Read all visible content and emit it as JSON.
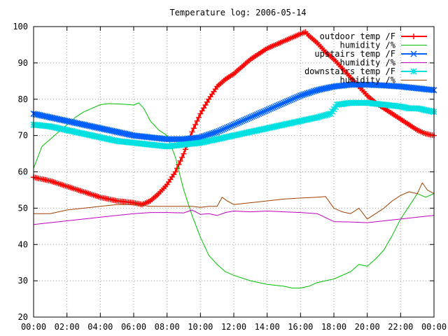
{
  "chart_data": {
    "type": "line",
    "title": "Temperature log: 2006-05-14",
    "xlabel": "",
    "ylabel": "",
    "xlim": [
      0,
      24
    ],
    "ylim": [
      20,
      100
    ],
    "x_ticks": [
      "00:00",
      "02:00",
      "04:00",
      "06:00",
      "08:00",
      "10:00",
      "12:00",
      "14:00",
      "16:00",
      "18:00",
      "20:00",
      "22:00",
      "00:00"
    ],
    "y_ticks": [
      20,
      30,
      40,
      50,
      60,
      70,
      80,
      90,
      100
    ],
    "grid": true,
    "legend_position": "top-right",
    "series": [
      {
        "name": "outdoor temp /F",
        "color": "#ff0000",
        "marker": "plus",
        "x": [
          0,
          1,
          2,
          3,
          4,
          5,
          6,
          6.5,
          7,
          7.5,
          8,
          8.5,
          9,
          9.5,
          10,
          10.5,
          11,
          11.5,
          12,
          12.5,
          13,
          13.5,
          14,
          14.5,
          15,
          15.5,
          16,
          16.3,
          16.5,
          17,
          17.5,
          18,
          18.5,
          19,
          19.5,
          20,
          20.5,
          21,
          21.5,
          22,
          22.5,
          23,
          23.5,
          24
        ],
        "values": [
          58.5,
          57.5,
          56,
          54.5,
          53,
          52,
          51.5,
          51,
          52,
          54,
          56.5,
          60,
          65,
          71,
          76,
          80,
          83.5,
          85.5,
          87,
          89,
          91,
          92.5,
          94,
          95,
          96,
          97,
          98,
          98.5,
          97.5,
          95.5,
          93,
          91,
          88.5,
          86,
          83.5,
          81,
          79,
          77.5,
          76,
          74.5,
          73,
          71.5,
          70.5,
          70
        ]
      },
      {
        "name": "humidity /%",
        "color": "#00c000",
        "marker": "none",
        "x": [
          0,
          0.5,
          1,
          1.5,
          2,
          2.5,
          3,
          3.5,
          4,
          4.5,
          5,
          5.5,
          6,
          6.3,
          6.6,
          7,
          7.5,
          8,
          8.5,
          9,
          9.5,
          10,
          10.5,
          11,
          11.5,
          12,
          13,
          14,
          15,
          15.5,
          16,
          16.5,
          17,
          18,
          19,
          19.5,
          20,
          20.5,
          21,
          21.5,
          22,
          22.5,
          23,
          23.5,
          24
        ],
        "values": [
          61,
          67,
          69,
          71,
          73,
          75,
          76.5,
          77.5,
          78.5,
          78.8,
          78.7,
          78.6,
          78.4,
          79,
          77.5,
          74,
          71.5,
          70,
          64,
          55,
          48,
          42,
          37,
          34.5,
          32.5,
          31.5,
          30,
          29,
          28.5,
          28,
          28,
          28.5,
          29.5,
          30.5,
          32.5,
          34.5,
          34,
          36,
          38.5,
          42.5,
          47,
          50.5,
          54,
          53,
          54
        ]
      },
      {
        "name": "upstairs temp /F",
        "color": "#0060ff",
        "marker": "x",
        "x": [
          0,
          1,
          2,
          3,
          4,
          5,
          6,
          7,
          8,
          9,
          10,
          11,
          12,
          13,
          14,
          15,
          16,
          17,
          18,
          19,
          20,
          21,
          22,
          23,
          24
        ],
        "values": [
          76,
          75,
          74,
          73,
          72,
          71,
          70,
          69.5,
          69,
          69,
          69.5,
          71,
          73,
          75,
          77,
          79,
          81,
          82.5,
          83.5,
          84,
          84,
          83.8,
          83.5,
          83,
          82.5
        ]
      },
      {
        "name": "humidity /%",
        "color": "#c000c0",
        "marker": "none",
        "x": [
          0,
          1,
          2,
          3,
          4,
          5,
          6,
          7,
          8,
          9,
          9.5,
          10,
          10.5,
          11,
          11.5,
          12,
          13,
          14,
          15,
          16,
          17,
          18,
          19,
          20,
          21,
          22,
          23,
          24
        ],
        "values": [
          45.5,
          46,
          46.5,
          47,
          47.5,
          48,
          48.5,
          48.8,
          48.8,
          48.7,
          49.5,
          48.3,
          48.5,
          48,
          48.8,
          49.2,
          49,
          49.2,
          49,
          48.8,
          48.5,
          46.3,
          46.2,
          46,
          46.5,
          47,
          47.5,
          48
        ]
      },
      {
        "name": "downstairs temp /F",
        "color": "#00e0e0",
        "marker": "star",
        "x": [
          0,
          1,
          2,
          3,
          4,
          5,
          6,
          7,
          8,
          9,
          10,
          11,
          12,
          13,
          14,
          15,
          16,
          17,
          17.8,
          18.2,
          19,
          20,
          21,
          22,
          22.5,
          23,
          23.5,
          24
        ],
        "values": [
          73,
          72.5,
          71.5,
          70.5,
          69.5,
          68.5,
          68,
          67.5,
          67,
          67.5,
          68,
          69,
          70,
          71,
          72,
          73,
          74,
          75,
          76,
          78.5,
          79,
          79,
          78.5,
          78,
          77.5,
          77.5,
          77,
          76.5
        ]
      },
      {
        "name": "humidity /%",
        "color": "#a04000",
        "marker": "none",
        "x": [
          0,
          1,
          2,
          3,
          4,
          5,
          6,
          7,
          8,
          9,
          9.5,
          10,
          10.5,
          11,
          11.3,
          11.6,
          12,
          13,
          14,
          15,
          16,
          17,
          17.5,
          18,
          18.5,
          19,
          19.5,
          20,
          20.5,
          21,
          21.5,
          22,
          22.5,
          23,
          23.3,
          23.6,
          24
        ],
        "values": [
          48.5,
          48.5,
          49.5,
          50,
          50.5,
          51,
          51,
          50.5,
          50.5,
          50.5,
          50.5,
          50.2,
          50.5,
          50.5,
          53,
          52,
          51,
          51.5,
          52,
          52.5,
          52.8,
          53,
          53.2,
          50,
          49,
          48.5,
          50,
          47,
          48.5,
          50,
          52,
          53.5,
          54.5,
          54,
          57,
          55,
          54
        ]
      }
    ]
  }
}
